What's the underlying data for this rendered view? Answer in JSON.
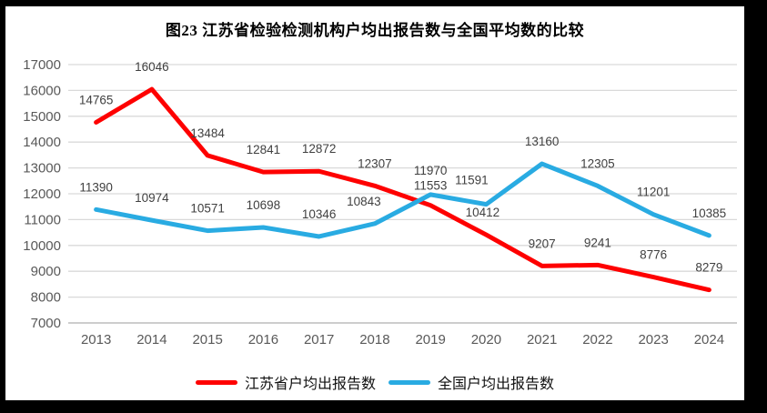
{
  "chart_data": {
    "type": "line",
    "title": "图23  江苏省检验检测机构户均出报告数与全国平均数的比较",
    "categories": [
      "2013",
      "2014",
      "2015",
      "2016",
      "2017",
      "2018",
      "2019",
      "2020",
      "2021",
      "2022",
      "2023",
      "2024"
    ],
    "series": [
      {
        "name": "江苏省户均出报告数",
        "color": "#FE0000",
        "values": [
          14765,
          16046,
          13484,
          12841,
          12872,
          12307,
          11553,
          10412,
          9207,
          9241,
          8776,
          8279
        ]
      },
      {
        "name": "全国户均出报告数",
        "color": "#29ABE2",
        "values": [
          11390,
          10974,
          10571,
          10698,
          10346,
          10843,
          11970,
          11591,
          13160,
          12305,
          11201,
          10385
        ]
      }
    ],
    "ylim": [
      7000,
      17000
    ],
    "ytick_step": 1000,
    "y_ticks": [
      "17000",
      "16000",
      "15000",
      "14000",
      "13000",
      "12000",
      "11000",
      "10000",
      "9000",
      "8000",
      "7000"
    ],
    "grid": "horizontal-only",
    "gridline_color": "#D9D9D9",
    "axis_line_color": "#BFBFBF",
    "tick_label_color": "#595959",
    "data_label_color": "#404040",
    "data_labels": true,
    "legend_position": "bottom"
  }
}
